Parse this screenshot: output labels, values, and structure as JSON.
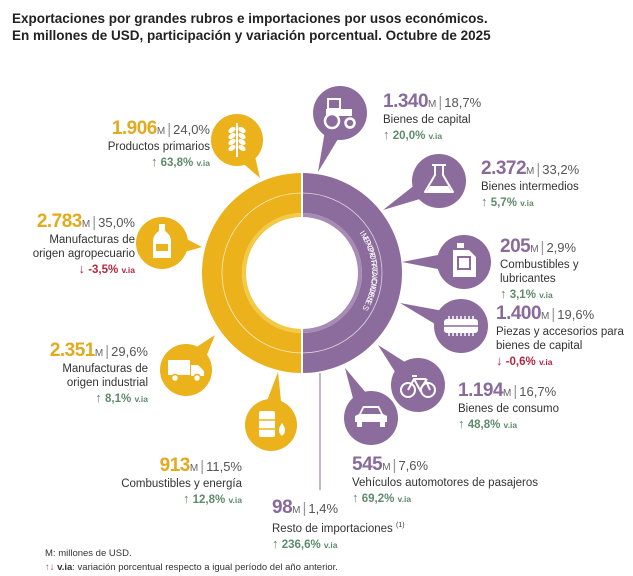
{
  "title_line1": "Exportaciones por grandes rubros e importaciones por usos económicos.",
  "title_line2": "En millones de USD, participación y variación porcentual. Octubre de 2025",
  "center_labels": {
    "exports": "EXPORTACIONES",
    "imports": "IMPORTACIONES"
  },
  "colors": {
    "exports": "#ebb21c",
    "imports": "#8b6c9c",
    "exports_light": "#f3c948",
    "imports_light": "#a68bb5",
    "positive": "#5e8b6a",
    "negative": "#b3283f"
  },
  "unit_label": "M",
  "via_label": "v.ia",
  "chart_data": {
    "type": "donut",
    "unit": "millones de USD",
    "series": [
      {
        "name": "Exportaciones",
        "items": [
          {
            "key": "pp",
            "value": "1.906",
            "share": "24,0%",
            "label_lines": [
              "Productos primarios"
            ],
            "variation": "63,8%",
            "direction": "up",
            "icon": "wheat-icon"
          },
          {
            "key": "moa",
            "value": "2.783",
            "share": "35,0%",
            "label_lines": [
              "Manufacturas de",
              "origen agropecuario"
            ],
            "variation": "-3,5%",
            "direction": "down",
            "icon": "bottle-icon"
          },
          {
            "key": "moi",
            "value": "2.351",
            "share": "29,6%",
            "label_lines": [
              "Manufacturas de",
              "origen industrial"
            ],
            "variation": "8,1%",
            "direction": "up",
            "icon": "truck-icon"
          },
          {
            "key": "cye",
            "value": "913",
            "share": "11,5%",
            "label_lines": [
              "Combustibles y energía"
            ],
            "variation": "12,8%",
            "direction": "up",
            "icon": "oil-barrel-icon"
          }
        ]
      },
      {
        "name": "Importaciones",
        "items": [
          {
            "key": "bk",
            "value": "1.340",
            "share": "18,7%",
            "label_lines": [
              "Bienes de capital"
            ],
            "variation": "20,0%",
            "direction": "up",
            "icon": "tractor-icon"
          },
          {
            "key": "bi",
            "value": "2.372",
            "share": "33,2%",
            "label_lines": [
              "Bienes intermedios"
            ],
            "variation": "5,7%",
            "direction": "up",
            "icon": "flask-icon"
          },
          {
            "key": "cl",
            "value": "205",
            "share": "2,9%",
            "label_lines": [
              "Combustibles y lubricantes"
            ],
            "variation": "3,1%",
            "direction": "up",
            "icon": "jerrycan-icon"
          },
          {
            "key": "pa",
            "value": "1.400",
            "share": "19,6%",
            "label_lines": [
              "Piezas y accesorios para",
              "bienes de capital"
            ],
            "variation": "-0,6%",
            "direction": "down",
            "icon": "part-icon"
          },
          {
            "key": "bc",
            "value": "1.194",
            "share": "16,7%",
            "label_lines": [
              "Bienes de consumo"
            ],
            "variation": "48,8%",
            "direction": "up",
            "icon": "bicycle-icon"
          },
          {
            "key": "va",
            "value": "545",
            "share": "7,6%",
            "label_lines": [
              "Vehículos automotores de pasajeros"
            ],
            "variation": "69,2%",
            "direction": "up",
            "icon": "car-icon"
          },
          {
            "key": "ri",
            "value": "98",
            "share": "1,4%",
            "label_lines": [
              "Resto de importaciones"
            ],
            "note": "(1)",
            "variation": "236,6%",
            "direction": "up",
            "icon": "none"
          }
        ]
      }
    ]
  },
  "footnotes": {
    "unit_note": "M: millones de USD.",
    "via_note_label": "v.ia",
    "via_note": ": variación porcentual respecto a igual período del año anterior."
  }
}
